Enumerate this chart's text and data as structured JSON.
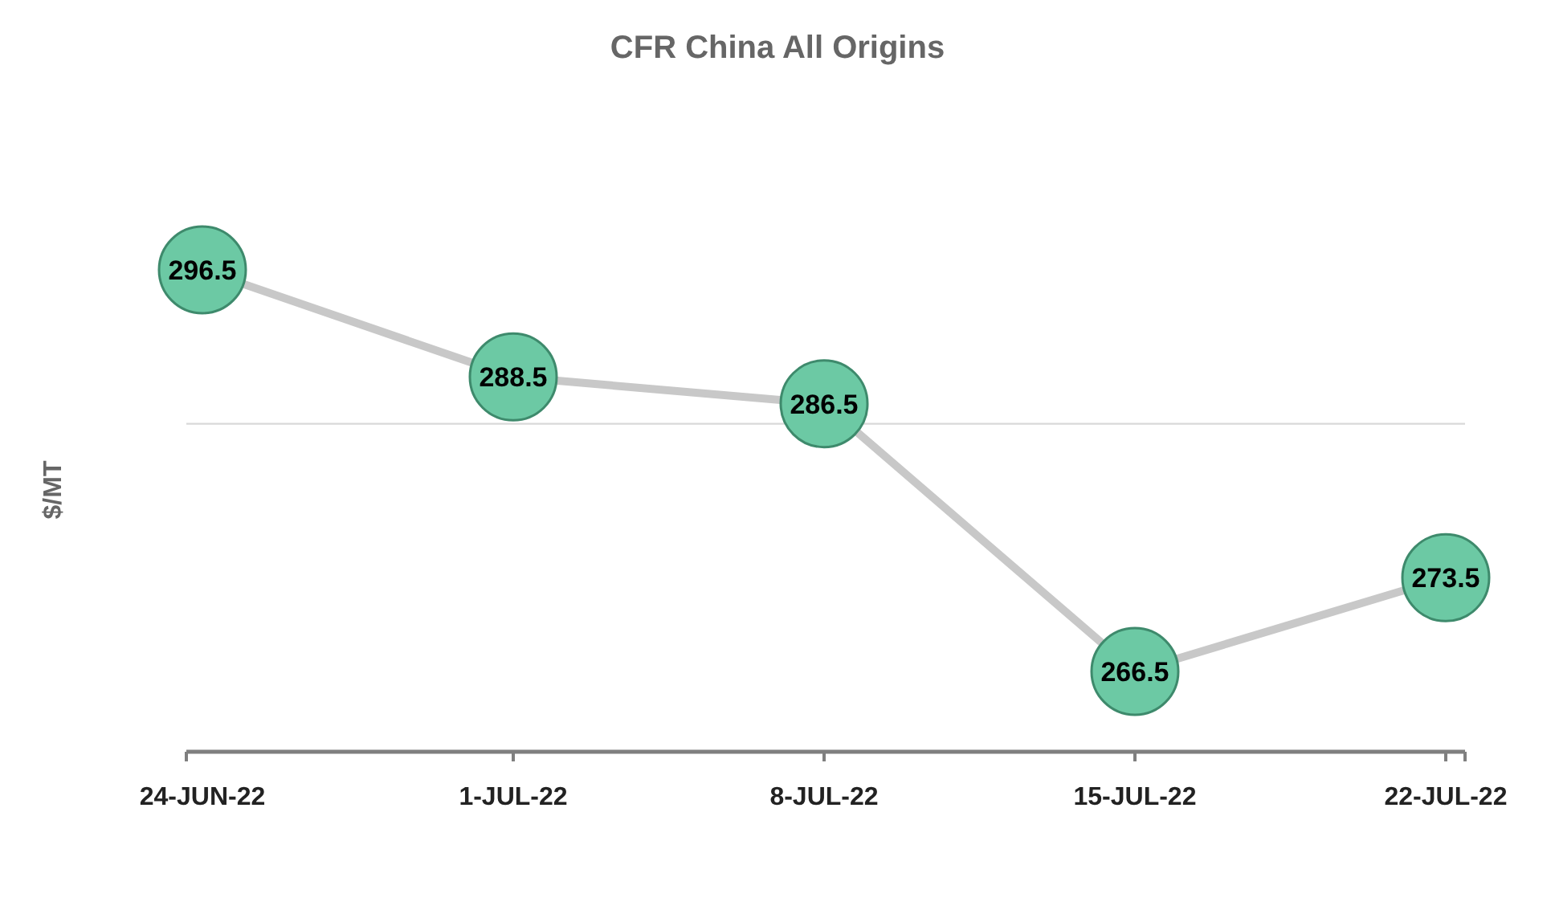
{
  "chart_data": {
    "type": "line",
    "title": "CFR China All Origins",
    "ylabel": "$/MT",
    "categories": [
      "24-JUN-22",
      "1-JUL-22",
      "8-JUL-22",
      "15-JUL-22",
      "22-JUL-22"
    ],
    "series": [
      {
        "color": "#c8c8c8",
        "values": [
          296.5,
          288.5,
          286.5,
          266.5,
          273.5
        ],
        "marker": "none"
      },
      {
        "type": "scatter",
        "color": "#6cc9a4",
        "values": [
          296.5,
          288.5,
          286.5,
          266.5,
          273.5
        ],
        "marker": "circle",
        "value_labels": [
          "296.5",
          "288.5",
          "286.5",
          "266.5",
          "273.5"
        ]
      }
    ],
    "ref_lines": [
      {
        "axis": "y",
        "value": 285,
        "color": "#d9d9d9"
      }
    ],
    "tick_labels": "x"
  }
}
